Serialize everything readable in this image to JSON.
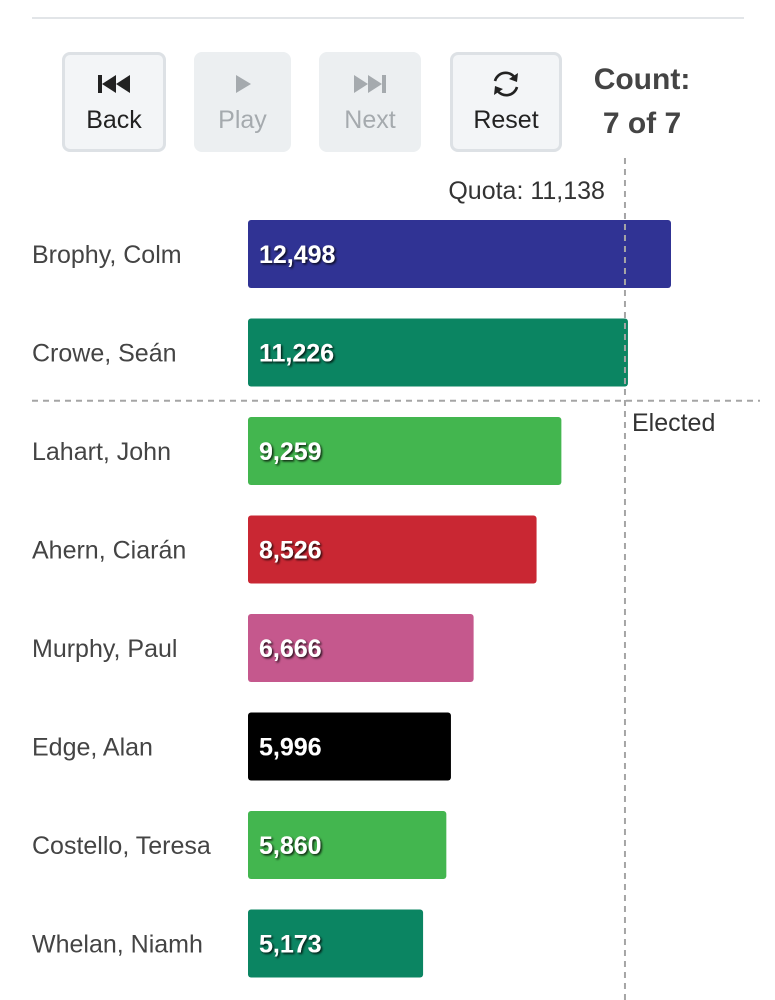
{
  "controls": {
    "back_label": "Back",
    "play_label": "Play",
    "next_label": "Next",
    "reset_label": "Reset",
    "count_title": "Count:",
    "count_value": "7 of 7",
    "icons": {
      "back": "skip-back-icon",
      "play": "play-icon",
      "next": "skip-forward-icon",
      "reset": "refresh-icon"
    }
  },
  "chart_data": {
    "type": "bar",
    "orientation": "horizontal",
    "categories": [
      "Brophy, Colm",
      "Crowe, Seán",
      "Lahart, John",
      "Ahern, Ciarán",
      "Murphy, Paul",
      "Edge, Alan",
      "Costello, Teresa",
      "Whelan, Niamh"
    ],
    "values": [
      12498,
      11226,
      9259,
      8526,
      6666,
      5996,
      5860,
      5173
    ],
    "value_labels": [
      "12,498",
      "11,226",
      "9,259",
      "8,526",
      "6,666",
      "5,996",
      "5,860",
      "5,173"
    ],
    "colors": [
      "#303394",
      "#0b8562",
      "#43b64f",
      "#c92733",
      "#c5588d",
      "#000000",
      "#43b64f",
      "#0b8562"
    ],
    "xlim": [
      0,
      12498
    ],
    "quota": 11138,
    "quota_label": "Quota: 11,138",
    "elected_count": 2,
    "elected_label": "Elected",
    "grid": false,
    "legend": "none"
  }
}
